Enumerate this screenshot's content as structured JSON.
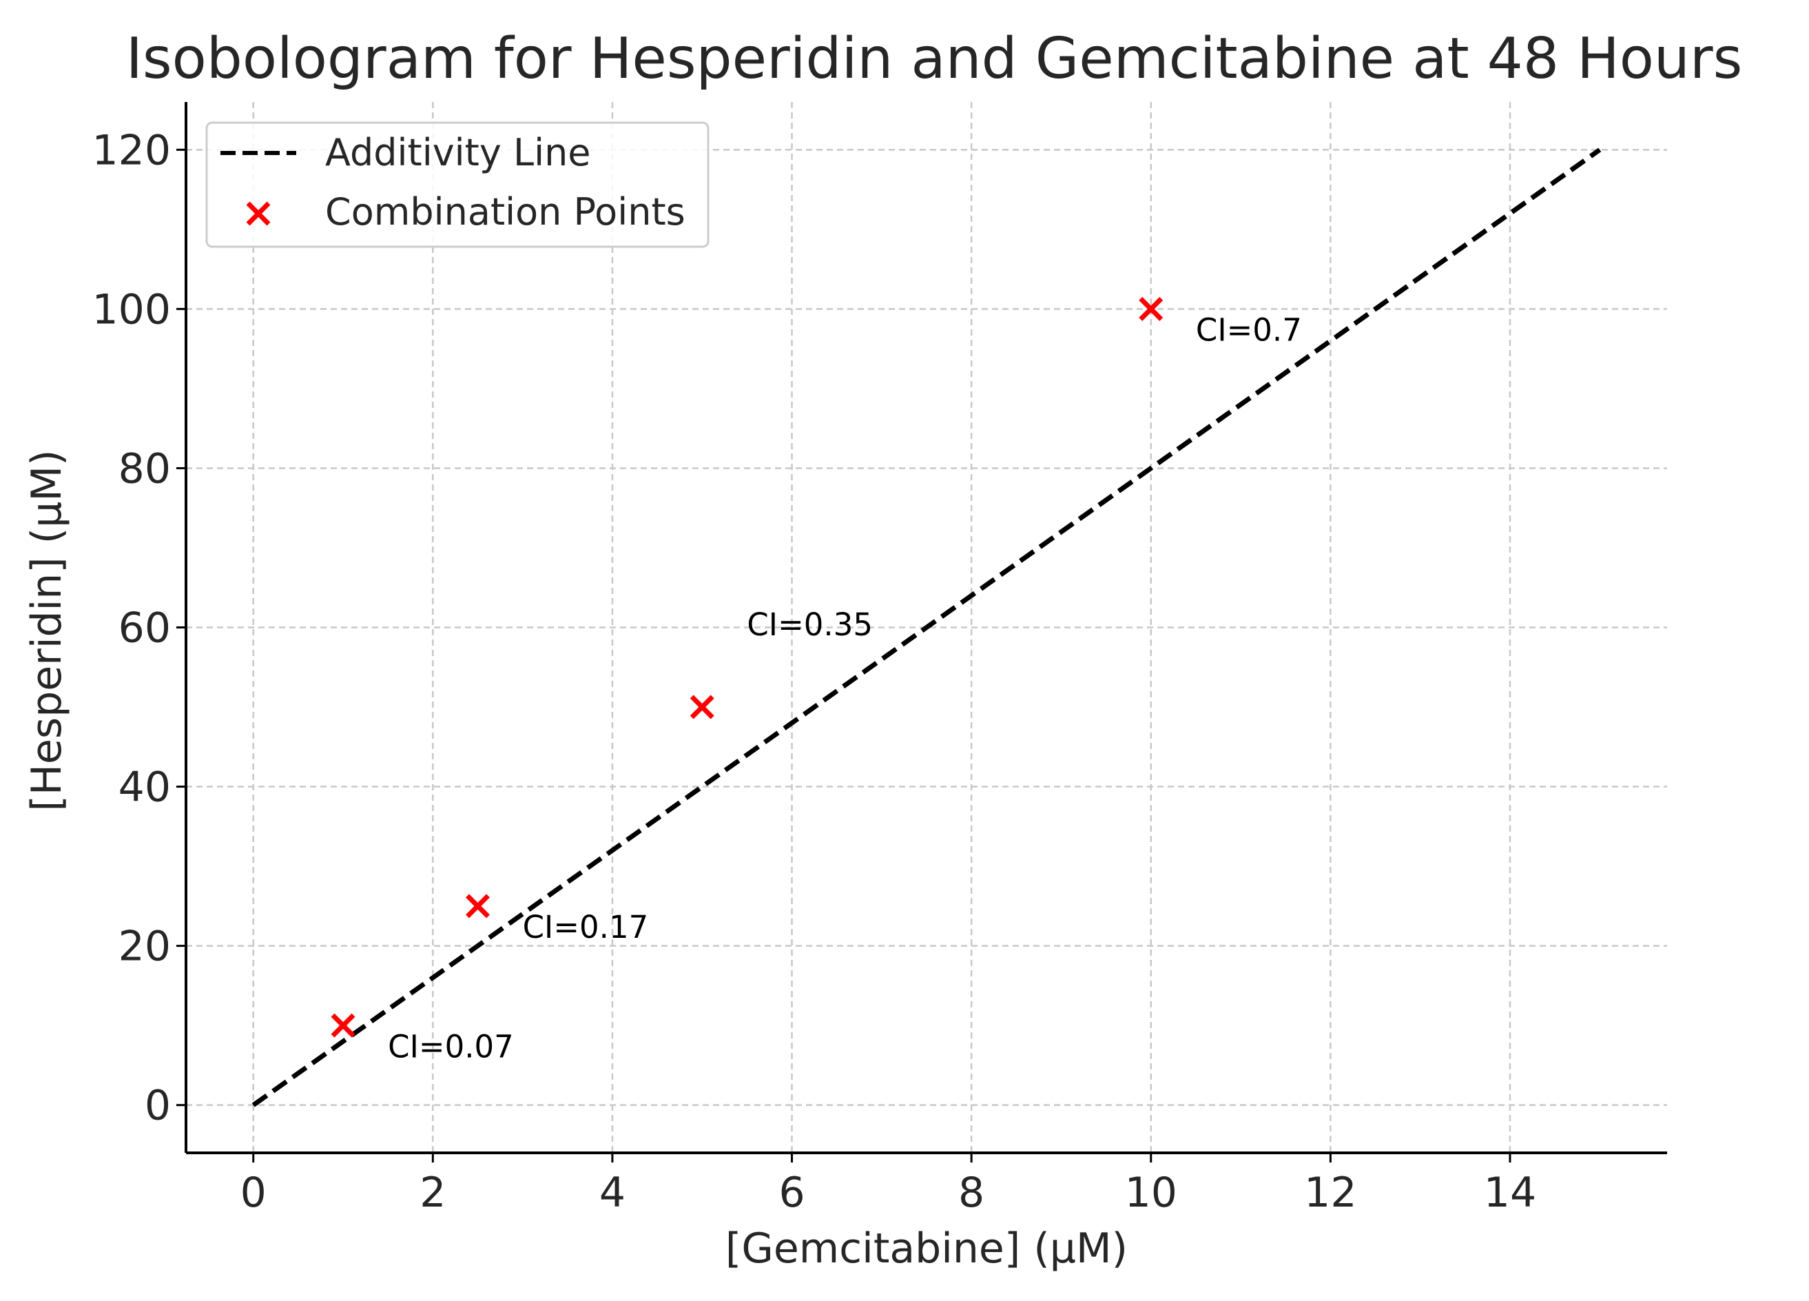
{
  "chart_data": {
    "type": "scatter",
    "title": "Isobologram for Hesperidin and Gemcitabine at 48 Hours",
    "xlabel": "[Gemcitabine] (µM)",
    "ylabel": "[Hesperidin] (µM)",
    "xlim": [
      -0.75,
      15.75
    ],
    "ylim": [
      -6,
      126
    ],
    "xticks": [
      0,
      2,
      4,
      6,
      8,
      10,
      12,
      14
    ],
    "yticks": [
      0,
      20,
      40,
      60,
      80,
      100,
      120
    ],
    "grid": true,
    "legend_position": "upper-left",
    "legend": [
      {
        "label": "Additivity Line",
        "style": "dashed",
        "color": "#000000"
      },
      {
        "label": "Combination Points",
        "marker": "x",
        "color": "#ff0000"
      }
    ],
    "series": [
      {
        "name": "Additivity Line",
        "kind": "line",
        "x": [
          0,
          15
        ],
        "y": [
          0,
          120
        ],
        "color": "#000000",
        "dash": "dashed"
      },
      {
        "name": "Combination Points",
        "kind": "scatter",
        "x": [
          1,
          2.5,
          5,
          10
        ],
        "y": [
          10,
          25,
          50,
          100
        ],
        "color": "#ff0000",
        "marker": "x"
      }
    ],
    "annotations": [
      {
        "text": "CI=0.07",
        "x": 1.5,
        "y": 6
      },
      {
        "text": "CI=0.17",
        "x": 3.0,
        "y": 21
      },
      {
        "text": "CI=0.35",
        "x": 5.5,
        "y": 59
      },
      {
        "text": "CI=0.7",
        "x": 10.5,
        "y": 96
      }
    ]
  }
}
